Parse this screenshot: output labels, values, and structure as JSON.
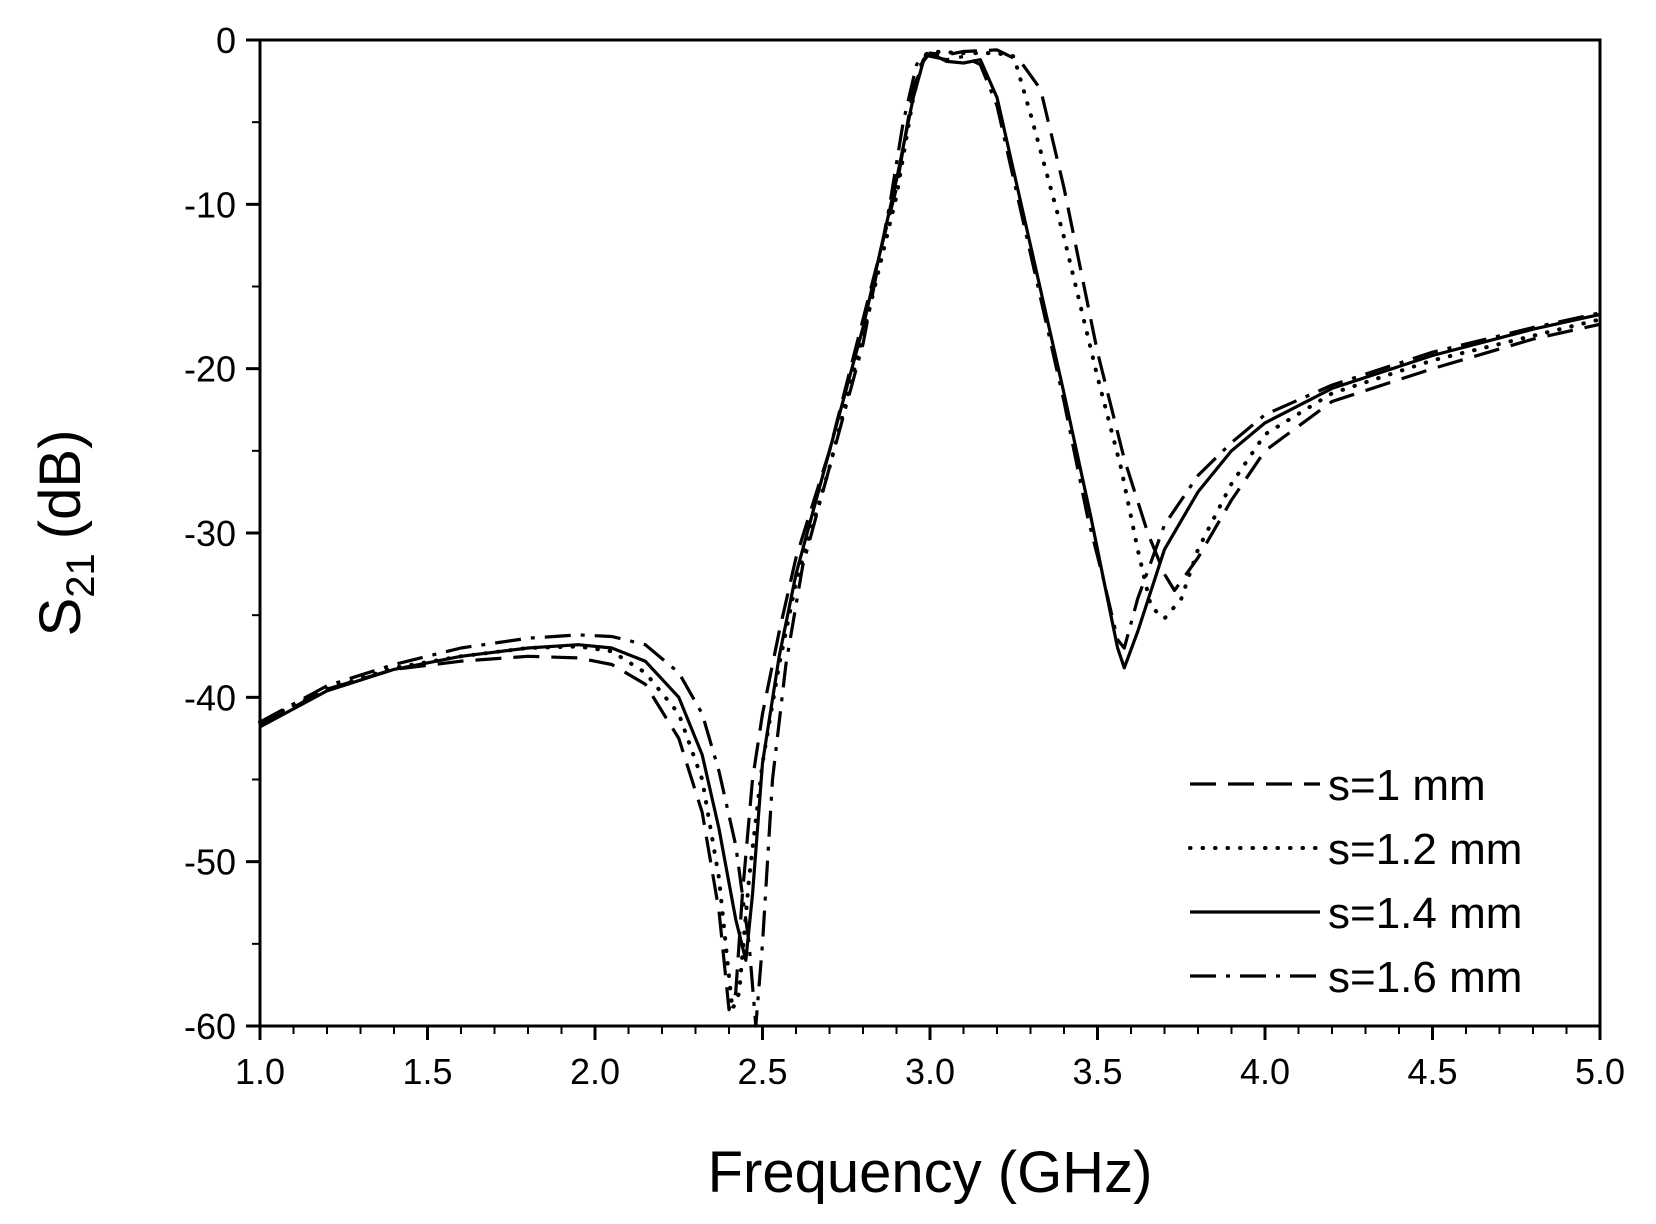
{
  "chart_data": {
    "type": "line",
    "xlabel": "Frequency (GHz)",
    "ylabel": {
      "main": "S",
      "sub": "21",
      "unit": "(dB)"
    },
    "xlim": [
      1.0,
      5.0
    ],
    "ylim": [
      -60,
      0
    ],
    "grid": false,
    "legend_position": "bottom-right",
    "x_ticks": [
      1.0,
      1.5,
      2.0,
      2.5,
      3.0,
      3.5,
      4.0,
      4.5,
      5.0
    ],
    "x_tick_labels": [
      "1.0",
      "1.5",
      "2.0",
      "2.5",
      "3.0",
      "3.5",
      "4.0",
      "4.5",
      "5.0"
    ],
    "y_ticks": [
      0,
      -10,
      -20,
      -30,
      -40,
      -50,
      -60
    ],
    "y_tick_labels": [
      "0",
      "-10",
      "-20",
      "-30",
      "-40",
      "-50",
      "-60"
    ],
    "series": [
      {
        "name": "s=1 mm",
        "dash": "dash",
        "points": [
          [
            1.0,
            -41.7
          ],
          [
            1.2,
            -39.5
          ],
          [
            1.4,
            -38.3
          ],
          [
            1.6,
            -37.8
          ],
          [
            1.8,
            -37.5
          ],
          [
            1.95,
            -37.6
          ],
          [
            2.05,
            -38.0
          ],
          [
            2.15,
            -39.2
          ],
          [
            2.25,
            -42.5
          ],
          [
            2.32,
            -47.0
          ],
          [
            2.37,
            -53.0
          ],
          [
            2.4,
            -59.0
          ],
          [
            2.42,
            -58.0
          ],
          [
            2.44,
            -52.0
          ],
          [
            2.47,
            -45.0
          ],
          [
            2.5,
            -41.0
          ],
          [
            2.55,
            -36.0
          ],
          [
            2.6,
            -31.5
          ],
          [
            2.7,
            -25.0
          ],
          [
            2.8,
            -17.0
          ],
          [
            2.9,
            -9.0
          ],
          [
            2.95,
            -3.0
          ],
          [
            2.98,
            -1.2
          ],
          [
            3.0,
            -0.8
          ],
          [
            3.05,
            -0.9
          ],
          [
            3.1,
            -0.7
          ],
          [
            3.2,
            -0.6
          ],
          [
            3.27,
            -1.3
          ],
          [
            3.33,
            -3.0
          ],
          [
            3.4,
            -9.0
          ],
          [
            3.5,
            -19.0
          ],
          [
            3.58,
            -25.5
          ],
          [
            3.65,
            -30.0
          ],
          [
            3.7,
            -32.5
          ],
          [
            3.73,
            -33.5
          ],
          [
            3.8,
            -31.5
          ],
          [
            3.9,
            -28.0
          ],
          [
            4.0,
            -25.0
          ],
          [
            4.2,
            -22.0
          ],
          [
            4.5,
            -20.0
          ],
          [
            4.8,
            -18.2
          ],
          [
            5.0,
            -17.3
          ]
        ]
      },
      {
        "name": "s=1.2 mm",
        "dash": "dot",
        "points": [
          [
            1.0,
            -41.5
          ],
          [
            1.2,
            -39.5
          ],
          [
            1.4,
            -38.2
          ],
          [
            1.6,
            -37.5
          ],
          [
            1.8,
            -37.0
          ],
          [
            1.95,
            -36.9
          ],
          [
            2.05,
            -37.2
          ],
          [
            2.15,
            -38.5
          ],
          [
            2.25,
            -41.0
          ],
          [
            2.32,
            -45.0
          ],
          [
            2.37,
            -51.0
          ],
          [
            2.41,
            -59.0
          ],
          [
            2.43,
            -58.0
          ],
          [
            2.46,
            -51.0
          ],
          [
            2.5,
            -44.0
          ],
          [
            2.55,
            -38.0
          ],
          [
            2.6,
            -33.0
          ],
          [
            2.7,
            -26.0
          ],
          [
            2.8,
            -18.0
          ],
          [
            2.9,
            -9.5
          ],
          [
            2.95,
            -3.5
          ],
          [
            2.98,
            -1.0
          ],
          [
            3.0,
            -0.7
          ],
          [
            3.1,
            -0.8
          ],
          [
            3.2,
            -0.8
          ],
          [
            3.25,
            -1.0
          ],
          [
            3.3,
            -4.5
          ],
          [
            3.4,
            -12.0
          ],
          [
            3.5,
            -20.5
          ],
          [
            3.57,
            -26.0
          ],
          [
            3.62,
            -31.0
          ],
          [
            3.66,
            -34.5
          ],
          [
            3.7,
            -35.2
          ],
          [
            3.75,
            -34.0
          ],
          [
            3.8,
            -31.0
          ],
          [
            3.9,
            -27.0
          ],
          [
            4.0,
            -24.0
          ],
          [
            4.2,
            -21.5
          ],
          [
            4.5,
            -19.5
          ],
          [
            4.8,
            -18.0
          ],
          [
            5.0,
            -17.0
          ]
        ]
      },
      {
        "name": "s=1.4 mm",
        "dash": "solid",
        "points": [
          [
            1.0,
            -41.8
          ],
          [
            1.2,
            -39.6
          ],
          [
            1.4,
            -38.3
          ],
          [
            1.6,
            -37.5
          ],
          [
            1.8,
            -37.0
          ],
          [
            1.95,
            -36.8
          ],
          [
            2.05,
            -37.0
          ],
          [
            2.15,
            -37.8
          ],
          [
            2.25,
            -40.0
          ],
          [
            2.32,
            -43.5
          ],
          [
            2.37,
            -48.0
          ],
          [
            2.42,
            -53.5
          ],
          [
            2.45,
            -56.0
          ],
          [
            2.47,
            -52.0
          ],
          [
            2.5,
            -44.0
          ],
          [
            2.55,
            -37.5
          ],
          [
            2.6,
            -32.5
          ],
          [
            2.7,
            -25.0
          ],
          [
            2.8,
            -17.5
          ],
          [
            2.9,
            -8.5
          ],
          [
            2.95,
            -3.5
          ],
          [
            2.98,
            -1.3
          ],
          [
            3.0,
            -0.8
          ],
          [
            3.05,
            -1.3
          ],
          [
            3.1,
            -1.4
          ],
          [
            3.15,
            -1.2
          ],
          [
            3.2,
            -3.5
          ],
          [
            3.3,
            -12.5
          ],
          [
            3.4,
            -21.5
          ],
          [
            3.48,
            -29.0
          ],
          [
            3.53,
            -34.0
          ],
          [
            3.56,
            -37.0
          ],
          [
            3.58,
            -38.2
          ],
          [
            3.62,
            -36.0
          ],
          [
            3.7,
            -31.0
          ],
          [
            3.8,
            -27.5
          ],
          [
            3.9,
            -25.0
          ],
          [
            4.0,
            -23.3
          ],
          [
            4.2,
            -21.2
          ],
          [
            4.5,
            -19.2
          ],
          [
            4.8,
            -17.6
          ],
          [
            5.0,
            -16.7
          ]
        ]
      },
      {
        "name": "s=1.6 mm",
        "dash": "dashdot",
        "points": [
          [
            1.0,
            -41.5
          ],
          [
            1.2,
            -39.3
          ],
          [
            1.4,
            -38.0
          ],
          [
            1.6,
            -37.0
          ],
          [
            1.8,
            -36.4
          ],
          [
            1.95,
            -36.2
          ],
          [
            2.05,
            -36.3
          ],
          [
            2.15,
            -36.8
          ],
          [
            2.25,
            -38.5
          ],
          [
            2.32,
            -41.0
          ],
          [
            2.37,
            -44.5
          ],
          [
            2.42,
            -49.0
          ],
          [
            2.46,
            -55.0
          ],
          [
            2.48,
            -60.0
          ],
          [
            2.5,
            -55.0
          ],
          [
            2.53,
            -45.0
          ],
          [
            2.57,
            -38.0
          ],
          [
            2.62,
            -32.0
          ],
          [
            2.7,
            -26.0
          ],
          [
            2.8,
            -18.5
          ],
          [
            2.88,
            -10.0
          ],
          [
            2.92,
            -5.0
          ],
          [
            2.96,
            -1.5
          ],
          [
            2.98,
            -0.9
          ],
          [
            3.05,
            -1.2
          ],
          [
            3.1,
            -1.0
          ],
          [
            3.15,
            -1.5
          ],
          [
            3.2,
            -4.0
          ],
          [
            3.3,
            -13.0
          ],
          [
            3.4,
            -22.0
          ],
          [
            3.47,
            -29.0
          ],
          [
            3.52,
            -33.0
          ],
          [
            3.56,
            -36.5
          ],
          [
            3.58,
            -37.0
          ],
          [
            3.62,
            -34.0
          ],
          [
            3.7,
            -29.5
          ],
          [
            3.8,
            -26.5
          ],
          [
            3.9,
            -24.5
          ],
          [
            4.0,
            -22.8
          ],
          [
            4.2,
            -21.0
          ],
          [
            4.5,
            -19.0
          ],
          [
            4.8,
            -17.5
          ],
          [
            5.0,
            -16.6
          ]
        ]
      }
    ]
  }
}
